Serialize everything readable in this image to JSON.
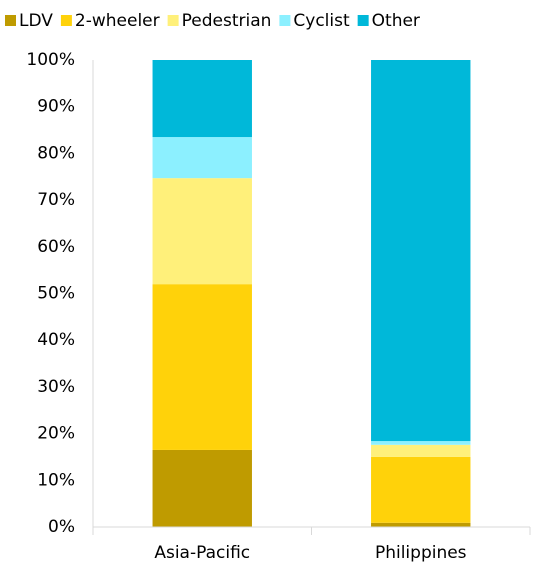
{
  "chart_data": {
    "type": "stacked_bar",
    "categories": [
      "Asia-Pacific",
      "Philippines"
    ],
    "series": [
      {
        "name": "LDV",
        "color": "#bf9b00",
        "values": [
          16.5,
          0.9
        ]
      },
      {
        "name": "2-wheeler",
        "color": "#ffd20a",
        "values": [
          35.5,
          14.1
        ]
      },
      {
        "name": "Pedestrian",
        "color": "#fff07a",
        "values": [
          22.7,
          2.6
        ]
      },
      {
        "name": "Cyclist",
        "color": "#8cf0ff",
        "values": [
          8.8,
          0.8
        ]
      },
      {
        "name": "Other",
        "color": "#00b8d9",
        "values": [
          16.5,
          81.6
        ]
      }
    ],
    "ylim": [
      0,
      100
    ],
    "yticks": [
      {
        "value": 0,
        "label": "0%"
      },
      {
        "value": 10,
        "label": "10%"
      },
      {
        "value": 20,
        "label": "20%"
      },
      {
        "value": 30,
        "label": "30%"
      },
      {
        "value": 40,
        "label": "40%"
      },
      {
        "value": 50,
        "label": "50%"
      },
      {
        "value": 60,
        "label": "60%"
      },
      {
        "value": 70,
        "label": "70%"
      },
      {
        "value": 80,
        "label": "80%"
      },
      {
        "value": 90,
        "label": "90%"
      },
      {
        "value": 100,
        "label": "100%"
      }
    ],
    "legend": "top"
  }
}
